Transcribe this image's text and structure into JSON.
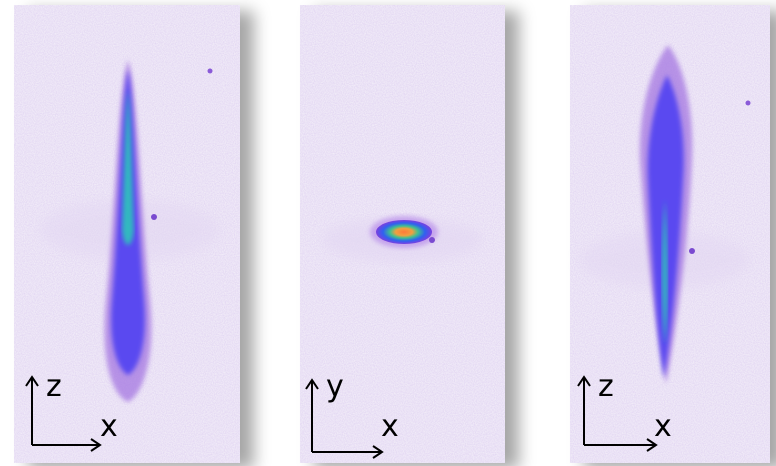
{
  "panels": [
    {
      "vertical_axis": "z",
      "horizontal_axis": "x"
    },
    {
      "vertical_axis": "y",
      "horizontal_axis": "x"
    },
    {
      "vertical_axis": "z",
      "horizontal_axis": "x"
    }
  ]
}
